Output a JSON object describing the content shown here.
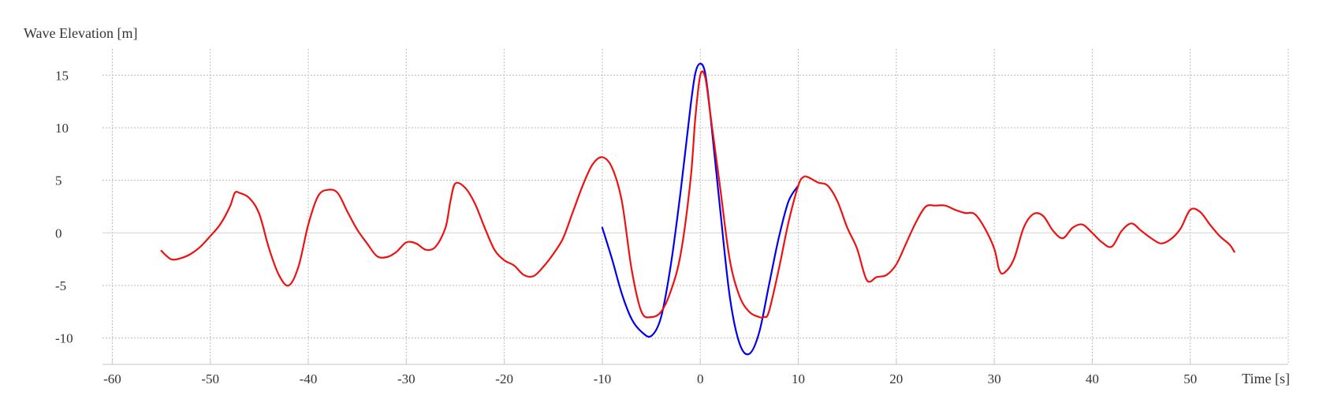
{
  "chart_data": {
    "type": "line",
    "ylabel": "Wave Elevation [m]",
    "xlabel": "Time [s]",
    "xlim": [
      -61,
      60
    ],
    "ylim": [
      -12.5,
      17.5
    ],
    "x_ticks": [
      -60,
      -50,
      -40,
      -30,
      -20,
      -10,
      0,
      10,
      20,
      30,
      40,
      50
    ],
    "y_ticks": [
      -10,
      -5,
      0,
      5,
      10,
      15
    ],
    "grid": true,
    "series": [
      {
        "color": "#0000ee",
        "x": [
          -10,
          -9,
          -8,
          -7,
          -6,
          -5,
          -4,
          -3,
          -2,
          -1,
          -0.5,
          0,
          0.5,
          1,
          2,
          3,
          4,
          5,
          6,
          7,
          8,
          9,
          10
        ],
        "y": [
          0.5,
          -2.5,
          -5.8,
          -8.2,
          -9.4,
          -9.8,
          -8.0,
          -3.0,
          4.0,
          12.0,
          15.2,
          16.1,
          15.2,
          11.5,
          2.5,
          -6.0,
          -10.5,
          -11.5,
          -9.5,
          -5.0,
          -0.5,
          3.0,
          4.5
        ]
      },
      {
        "color": "#ee1111",
        "x": [
          -55,
          -54,
          -53,
          -52,
          -51,
          -50,
          -49,
          -48,
          -47.5,
          -47,
          -46,
          -45,
          -44,
          -43,
          -42,
          -41,
          -40,
          -39,
          -38,
          -37,
          -36,
          -35,
          -34,
          -33,
          -32,
          -31,
          -30,
          -29,
          -28,
          -27,
          -26,
          -25.5,
          -25,
          -24,
          -23,
          -22,
          -21,
          -20,
          -19,
          -18,
          -17,
          -16,
          -15,
          -14,
          -13,
          -12,
          -11,
          -10,
          -9,
          -8,
          -7,
          -6,
          -5,
          -4,
          -3,
          -2,
          -1,
          -0.5,
          0,
          0.5,
          1,
          2,
          3,
          4,
          5,
          6,
          6.5,
          7,
          8,
          9,
          10,
          10.5,
          11,
          12,
          13,
          14,
          15,
          16,
          17,
          18,
          19,
          20,
          21,
          22,
          23,
          24,
          25,
          26,
          27,
          28,
          29,
          30,
          30.5,
          31,
          32,
          33,
          34,
          35,
          36,
          37,
          38,
          39,
          40,
          41,
          42,
          43,
          44,
          45,
          46,
          47,
          48,
          49,
          50,
          51,
          52,
          53,
          54,
          54.5
        ],
        "y": [
          -1.7,
          -2.5,
          -2.4,
          -2.0,
          -1.3,
          -0.3,
          0.8,
          2.5,
          3.8,
          3.8,
          3.3,
          1.8,
          -1.5,
          -4.0,
          -5.0,
          -3.2,
          0.8,
          3.5,
          4.1,
          3.8,
          2.0,
          0.3,
          -1.0,
          -2.2,
          -2.3,
          -1.8,
          -0.9,
          -1.0,
          -1.6,
          -1.3,
          0.5,
          3.0,
          4.7,
          4.3,
          2.8,
          0.5,
          -1.6,
          -2.6,
          -3.1,
          -4.0,
          -4.1,
          -3.2,
          -2.0,
          -0.5,
          2.0,
          4.5,
          6.5,
          7.2,
          6.2,
          3.0,
          -3.5,
          -7.5,
          -8.0,
          -7.5,
          -5.5,
          -2.0,
          5.0,
          11.0,
          15.0,
          14.8,
          11.5,
          4.5,
          -2.5,
          -6.0,
          -7.5,
          -8.0,
          -8.0,
          -7.5,
          -3.5,
          1.0,
          4.5,
          5.3,
          5.3,
          4.8,
          4.5,
          3.0,
          0.5,
          -1.5,
          -4.5,
          -4.2,
          -4.0,
          -3.0,
          -1.0,
          1.0,
          2.5,
          2.6,
          2.6,
          2.2,
          1.9,
          1.8,
          0.5,
          -1.5,
          -3.5,
          -3.8,
          -2.5,
          0.5,
          1.8,
          1.6,
          0.2,
          -0.5,
          0.5,
          0.8,
          0.0,
          -0.9,
          -1.3,
          0.2,
          0.9,
          0.2,
          -0.5,
          -1.0,
          -0.6,
          0.4,
          2.2,
          2.0,
          0.8,
          -0.3,
          -1.1,
          -1.8
        ]
      }
    ]
  }
}
